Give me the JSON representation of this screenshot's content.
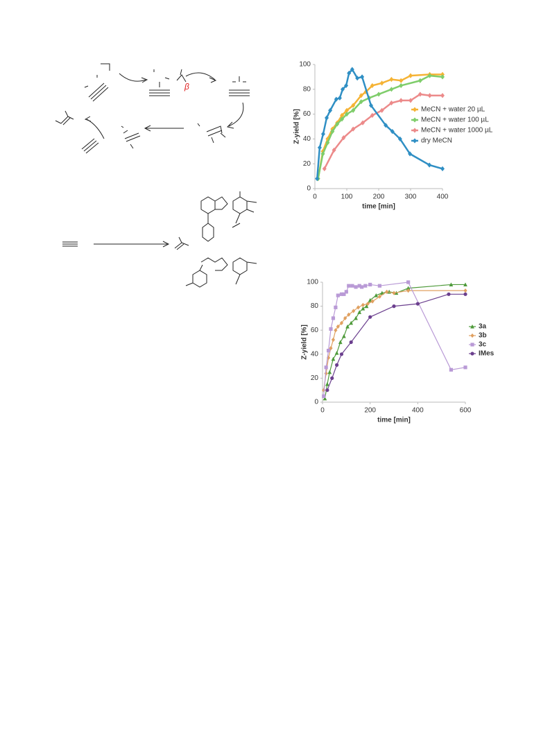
{
  "scheme": {
    "labels": [
      "β"
    ]
  },
  "chart_data": [
    {
      "type": "line",
      "xlabel": "time [min]",
      "ylabel": "Z-yield [%]",
      "xlim": [
        0,
        400
      ],
      "ylim": [
        0,
        100
      ],
      "xticks": [
        0,
        100,
        200,
        300,
        400
      ],
      "yticks": [
        0,
        20,
        40,
        60,
        80,
        100
      ],
      "legend": "right",
      "series": [
        {
          "name": "MeCN + water 20 µL",
          "color": "#f5b335",
          "marker": "diamond",
          "x": [
            10,
            25,
            40,
            55,
            70,
            85,
            100,
            120,
            145,
            160,
            180,
            210,
            240,
            270,
            300,
            360,
            400
          ],
          "values": [
            8,
            30,
            40,
            48,
            53,
            59,
            63,
            67,
            75,
            78,
            83,
            85,
            88,
            87,
            91,
            92,
            92
          ]
        },
        {
          "name": "MeCN + water 100 µL",
          "color": "#7fcd6b",
          "marker": "diamond",
          "x": [
            10,
            25,
            40,
            55,
            70,
            85,
            100,
            120,
            145,
            170,
            200,
            240,
            270,
            330,
            360,
            400
          ],
          "values": [
            8,
            28,
            37,
            46,
            52,
            56,
            60,
            63,
            70,
            73,
            76,
            80,
            83,
            87,
            91,
            90
          ]
        },
        {
          "name": "MeCN + water 1000 µL",
          "color": "#ec8a8a",
          "marker": "diamond",
          "x": [
            30,
            60,
            90,
            120,
            150,
            180,
            210,
            240,
            270,
            300,
            330,
            360,
            400
          ],
          "values": [
            16,
            31,
            41,
            48,
            53,
            59,
            63,
            69,
            71,
            71,
            76,
            75,
            75
          ]
        },
        {
          "name": "dry MeCN",
          "color": "#2f8fc4",
          "marker": "diamond",
          "x": [
            7,
            15,
            26,
            37,
            48,
            67,
            78,
            87,
            98,
            107,
            117,
            133,
            148,
            176,
            222,
            243,
            267,
            298,
            359,
            400
          ],
          "values": [
            8,
            33,
            44,
            57,
            63,
            72,
            73,
            80,
            83,
            93,
            96,
            89,
            90,
            67,
            51,
            46,
            40,
            28,
            19,
            16
          ]
        }
      ]
    },
    {
      "type": "line",
      "xlabel": "time [min]",
      "ylabel": "Z-yield [%]",
      "xlim": [
        0,
        600
      ],
      "ylim": [
        0,
        100
      ],
      "xticks": [
        0,
        200,
        400,
        600
      ],
      "yticks": [
        0,
        20,
        40,
        60,
        80,
        100
      ],
      "legend": "right",
      "series": [
        {
          "name": "3a",
          "color": "#4e9a3a",
          "marker": "triangle",
          "x": [
            10,
            20,
            30,
            45,
            60,
            75,
            90,
            105,
            120,
            140,
            155,
            170,
            185,
            200,
            225,
            250,
            280,
            310,
            360,
            540,
            600
          ],
          "values": [
            3,
            15,
            25,
            36,
            41,
            50,
            55,
            63,
            66,
            70,
            75,
            78,
            80,
            85,
            89,
            91,
            92,
            91,
            95,
            98,
            98
          ]
        },
        {
          "name": "3b",
          "color": "#e0a060",
          "marker": "diamond",
          "x": [
            5,
            15,
            25,
            35,
            45,
            55,
            65,
            80,
            95,
            110,
            130,
            150,
            170,
            190,
            210,
            240,
            270,
            300,
            360,
            600
          ],
          "values": [
            10,
            24,
            37,
            45,
            52,
            60,
            63,
            66,
            70,
            73,
            76,
            79,
            81,
            82,
            84,
            88,
            92,
            91,
            93,
            93
          ]
        },
        {
          "name": "3c",
          "color": "#b99ad6",
          "marker": "square",
          "x": [
            5,
            15,
            25,
            35,
            45,
            55,
            65,
            80,
            90,
            100,
            110,
            125,
            140,
            155,
            165,
            180,
            200,
            240,
            360,
            540,
            600
          ],
          "values": [
            5,
            29,
            43,
            61,
            70,
            79,
            89,
            90,
            90,
            92,
            97,
            97,
            96,
            97,
            96,
            97,
            98,
            97,
            100,
            27,
            29
          ]
        },
        {
          "name": "IMes",
          "color": "#6b3f8e",
          "marker": "circle",
          "x": [
            20,
            40,
            60,
            80,
            120,
            200,
            300,
            400,
            530,
            600
          ],
          "values": [
            10,
            20,
            31,
            40,
            50,
            71,
            80,
            82,
            90,
            90
          ]
        }
      ]
    }
  ]
}
